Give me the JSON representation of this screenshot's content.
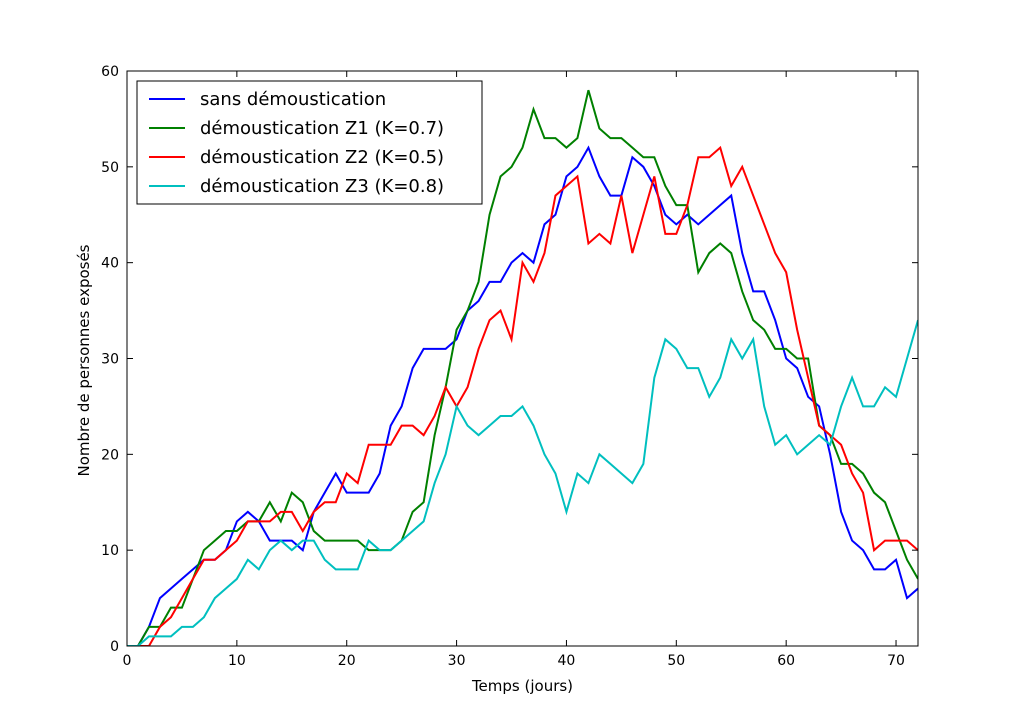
{
  "chart_data": {
    "type": "line",
    "title": "",
    "xlabel": "Temps (jours)",
    "ylabel": "Nombre de personnes exposés",
    "xlim": [
      0,
      72
    ],
    "ylim": [
      0,
      60
    ],
    "xticks": [
      0,
      10,
      20,
      30,
      40,
      50,
      60,
      70
    ],
    "yticks": [
      0,
      10,
      20,
      30,
      40,
      50,
      60
    ],
    "grid": false,
    "legend_position": "top-left",
    "x": [
      0,
      1,
      2,
      3,
      4,
      5,
      6,
      7,
      8,
      9,
      10,
      11,
      12,
      13,
      14,
      15,
      16,
      17,
      18,
      19,
      20,
      21,
      22,
      23,
      24,
      25,
      26,
      27,
      28,
      29,
      30,
      31,
      32,
      33,
      34,
      35,
      36,
      37,
      38,
      39,
      40,
      41,
      42,
      43,
      44,
      45,
      46,
      47,
      48,
      49,
      50,
      51,
      52,
      53,
      54,
      55,
      56,
      57,
      58,
      59,
      60,
      61,
      62,
      63,
      64,
      65,
      66,
      67,
      68,
      69,
      70,
      71,
      72
    ],
    "series": [
      {
        "name": "sans démoustication",
        "color": "#0000ff",
        "values": [
          0,
          0,
          2,
          5,
          6,
          7,
          8,
          9,
          9,
          10,
          13,
          14,
          13,
          11,
          11,
          11,
          10,
          14,
          16,
          18,
          16,
          16,
          16,
          18,
          23,
          25,
          29,
          31,
          31,
          31,
          32,
          35,
          36,
          38,
          38,
          40,
          41,
          40,
          44,
          45,
          49,
          50,
          52,
          49,
          47,
          47,
          51,
          50,
          48,
          45,
          44,
          45,
          44,
          45,
          46,
          47,
          41,
          37,
          37,
          34,
          30,
          29,
          26,
          25,
          20,
          14,
          11,
          10,
          8,
          8,
          9,
          5,
          6
        ]
      },
      {
        "name": "démoustication Z1 (K=0.7)",
        "color": "#008000",
        "values": [
          0,
          0,
          2,
          2,
          4,
          4,
          7,
          10,
          11,
          12,
          12,
          13,
          13,
          15,
          13,
          16,
          15,
          12,
          11,
          11,
          11,
          11,
          10,
          10,
          10,
          11,
          14,
          15,
          22,
          27,
          33,
          35,
          38,
          45,
          49,
          50,
          52,
          56,
          53,
          53,
          52,
          53,
          58,
          54,
          53,
          53,
          52,
          51,
          51,
          48,
          46,
          46,
          39,
          41,
          42,
          41,
          37,
          34,
          33,
          31,
          31,
          30,
          30,
          23,
          22,
          19,
          19,
          18,
          16,
          15,
          12,
          9,
          7
        ]
      },
      {
        "name": "démoustication Z2 (K=0.5)",
        "color": "#ff0000",
        "values": [
          0,
          0,
          0,
          2,
          3,
          5,
          7,
          9,
          9,
          10,
          11,
          13,
          13,
          13,
          14,
          14,
          12,
          14,
          15,
          15,
          18,
          17,
          21,
          21,
          21,
          23,
          23,
          22,
          24,
          27,
          25,
          27,
          31,
          34,
          35,
          32,
          40,
          38,
          41,
          47,
          48,
          49,
          42,
          43,
          42,
          47,
          41,
          45,
          49,
          43,
          43,
          46,
          51,
          51,
          52,
          48,
          50,
          47,
          44,
          41,
          39,
          33,
          28,
          23,
          22,
          21,
          18,
          16,
          10,
          11,
          11,
          11,
          10
        ]
      },
      {
        "name": "démoustication Z3 (K=0.8)",
        "color": "#00bfbf",
        "values": [
          0,
          0,
          1,
          1,
          1,
          2,
          2,
          3,
          5,
          6,
          7,
          9,
          8,
          10,
          11,
          10,
          11,
          11,
          9,
          8,
          8,
          8,
          11,
          10,
          10,
          11,
          12,
          13,
          17,
          20,
          25,
          23,
          22,
          23,
          24,
          24,
          25,
          23,
          20,
          18,
          14,
          18,
          17,
          20,
          19,
          18,
          17,
          19,
          28,
          32,
          31,
          29,
          29,
          26,
          28,
          32,
          30,
          32,
          25,
          21,
          22,
          20,
          21,
          22,
          21,
          25,
          28,
          25,
          25,
          27,
          26,
          30,
          34
        ]
      }
    ]
  }
}
